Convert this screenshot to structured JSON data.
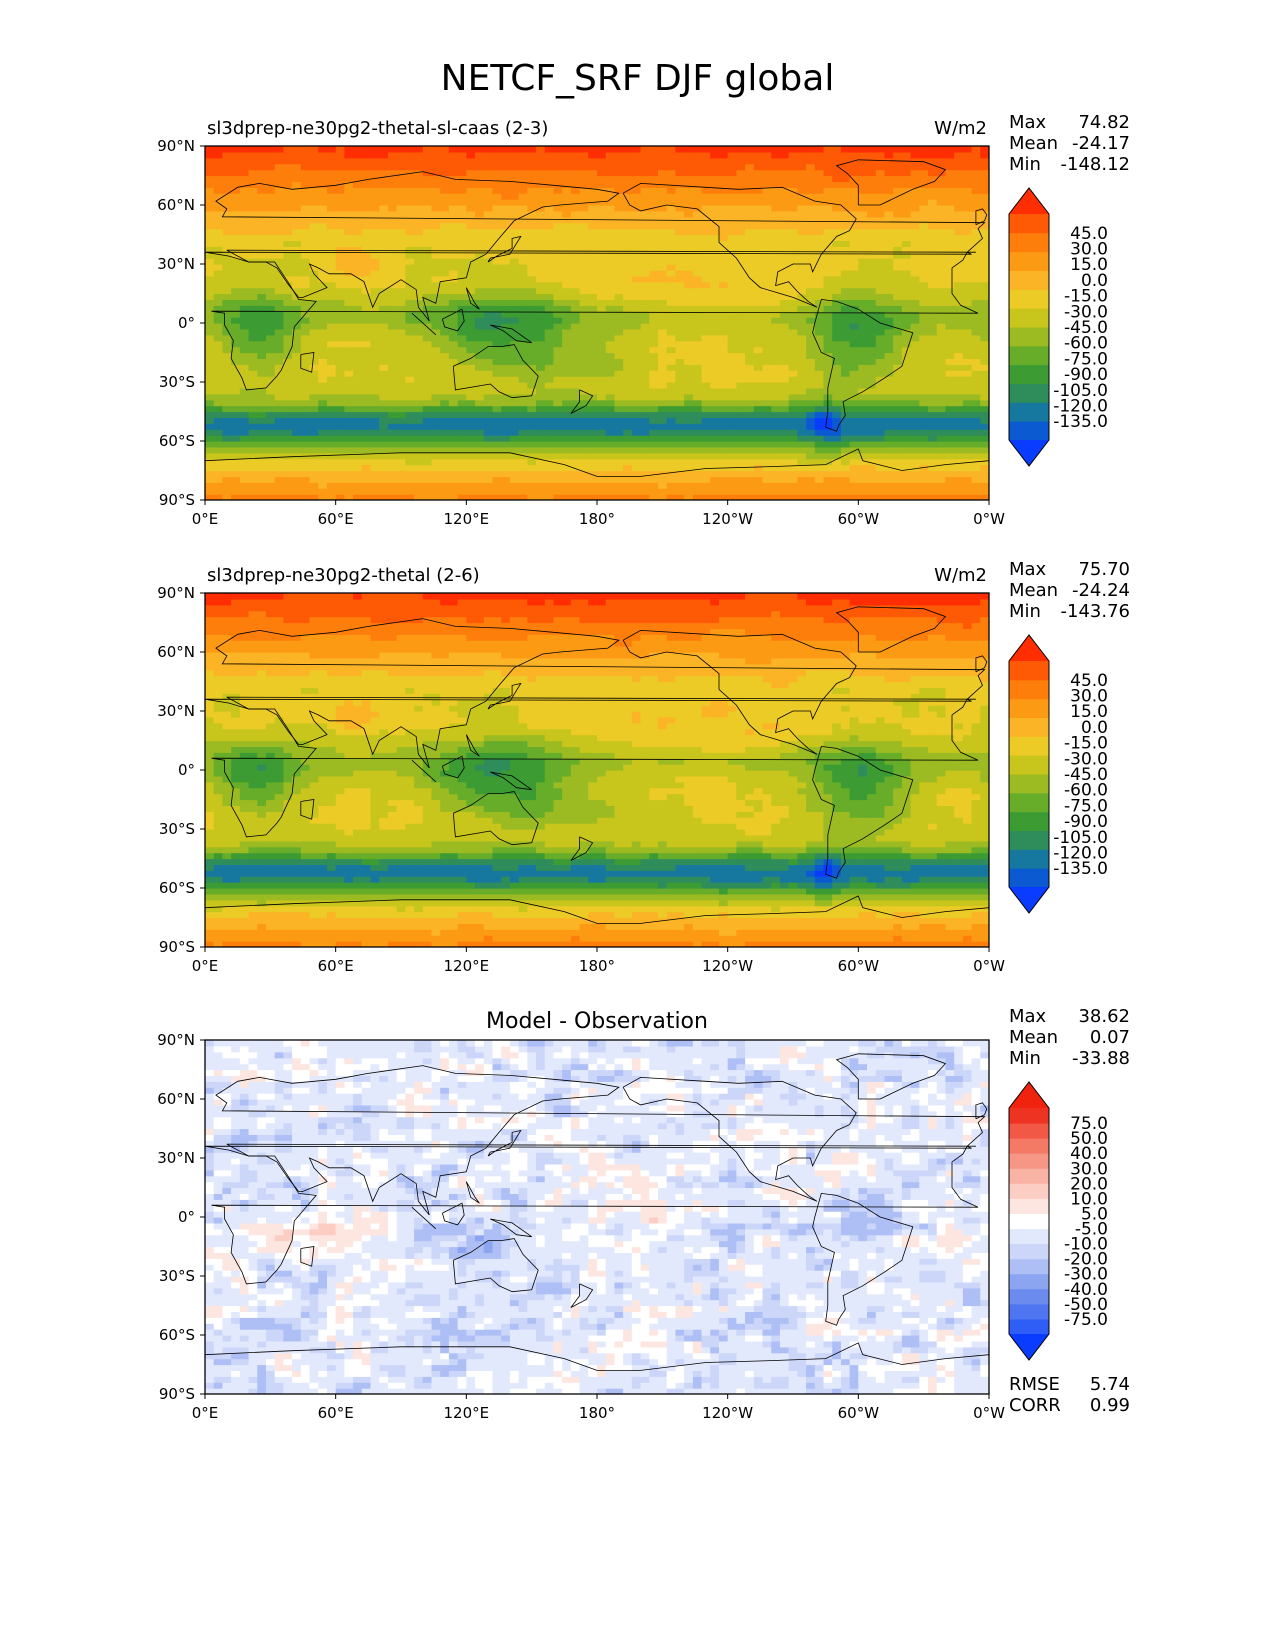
{
  "suptitle": "NETCF_SRF DJF global",
  "colors": {
    "main_levels": [
      "#0a3cff",
      "#0c5ad2",
      "#17789f",
      "#2f8c5b",
      "#3c9c33",
      "#67ad2a",
      "#9cbb22",
      "#c8c51d",
      "#eccb26",
      "#fbb426",
      "#fd9a14",
      "#fe7e0c",
      "#fe5a06",
      "#fe2d02"
    ],
    "diff_levels": [
      "#0a3cff",
      "#2e5ef5",
      "#4f76f0",
      "#6b8bee",
      "#8ca5f0",
      "#adbff5",
      "#cbd6f9",
      "#e3e9fc",
      "#ffffff",
      "#fde5e0",
      "#fbcdc3",
      "#f9b3a5",
      "#f69786",
      "#f47a66",
      "#f15845",
      "#ee3322",
      "#f0240e"
    ],
    "coast": "#000000"
  },
  "chart_data": [
    {
      "type": "heatmap",
      "panel": "test",
      "title_left": "sl3dprep-ne30pg2-thetal-sl-caas (2-3)",
      "title_right": "W/m2",
      "stats": [
        {
          "label": "Max",
          "value": "74.82"
        },
        {
          "label": "Mean",
          "value": "-24.17"
        },
        {
          "label": "Min",
          "value": "-148.12"
        }
      ],
      "x_ticks": [
        "0°E",
        "60°E",
        "120°E",
        "180°",
        "120°W",
        "60°W",
        "0°W"
      ],
      "y_ticks": [
        "90°N",
        "60°N",
        "30°N",
        "0°",
        "30°S",
        "60°S",
        "90°S"
      ],
      "xlim": [
        0,
        360
      ],
      "ylim": [
        -90,
        90
      ],
      "colorbar_levels": [
        -135,
        -120,
        -105,
        -90,
        -75,
        -60,
        -45,
        -30,
        -15,
        0,
        15,
        30,
        45
      ],
      "colorbar_labels": [
        "45.0",
        "30.0",
        "15.0",
        "0.0",
        "-15.0",
        "-30.0",
        "-45.0",
        "-60.0",
        "-75.0",
        "-90.0",
        "-105.0",
        "-120.0",
        "-135.0"
      ]
    },
    {
      "type": "heatmap",
      "panel": "reference",
      "title_left": "sl3dprep-ne30pg2-thetal (2-6)",
      "title_right": "W/m2",
      "stats": [
        {
          "label": "Max",
          "value": "75.70"
        },
        {
          "label": "Mean",
          "value": "-24.24"
        },
        {
          "label": "Min",
          "value": "-143.76"
        }
      ],
      "x_ticks": [
        "0°E",
        "60°E",
        "120°E",
        "180°",
        "120°W",
        "60°W",
        "0°W"
      ],
      "y_ticks": [
        "90°N",
        "60°N",
        "30°N",
        "0°",
        "30°S",
        "60°S",
        "90°S"
      ],
      "xlim": [
        0,
        360
      ],
      "ylim": [
        -90,
        90
      ],
      "colorbar_levels": [
        -135,
        -120,
        -105,
        -90,
        -75,
        -60,
        -45,
        -30,
        -15,
        0,
        15,
        30,
        45
      ],
      "colorbar_labels": [
        "45.0",
        "30.0",
        "15.0",
        "0.0",
        "-15.0",
        "-30.0",
        "-45.0",
        "-60.0",
        "-75.0",
        "-90.0",
        "-105.0",
        "-120.0",
        "-135.0"
      ]
    },
    {
      "type": "heatmap",
      "panel": "difference",
      "title_center": "Model - Observation",
      "stats": [
        {
          "label": "Max",
          "value": "38.62"
        },
        {
          "label": "Mean",
          "value": "0.07"
        },
        {
          "label": "Min",
          "value": "-33.88"
        }
      ],
      "bottom_stats": [
        {
          "label": "RMSE",
          "value": "5.74"
        },
        {
          "label": "CORR",
          "value": "0.99"
        }
      ],
      "x_ticks": [
        "0°E",
        "60°E",
        "120°E",
        "180°",
        "120°W",
        "60°W",
        "0°W"
      ],
      "y_ticks": [
        "90°N",
        "60°N",
        "30°N",
        "0°",
        "30°S",
        "60°S",
        "90°S"
      ],
      "xlim": [
        0,
        360
      ],
      "ylim": [
        -90,
        90
      ],
      "colorbar_levels": [
        -75,
        -50,
        -40,
        -30,
        -20,
        -10,
        -5,
        5,
        10,
        20,
        30,
        40,
        50,
        75
      ],
      "colorbar_labels": [
        "75.0",
        "50.0",
        "40.0",
        "30.0",
        "20.0",
        "10.0",
        "5.0",
        "-5.0",
        "-10.0",
        "-20.0",
        "-30.0",
        "-40.0",
        "-50.0",
        "-75.0"
      ]
    }
  ]
}
